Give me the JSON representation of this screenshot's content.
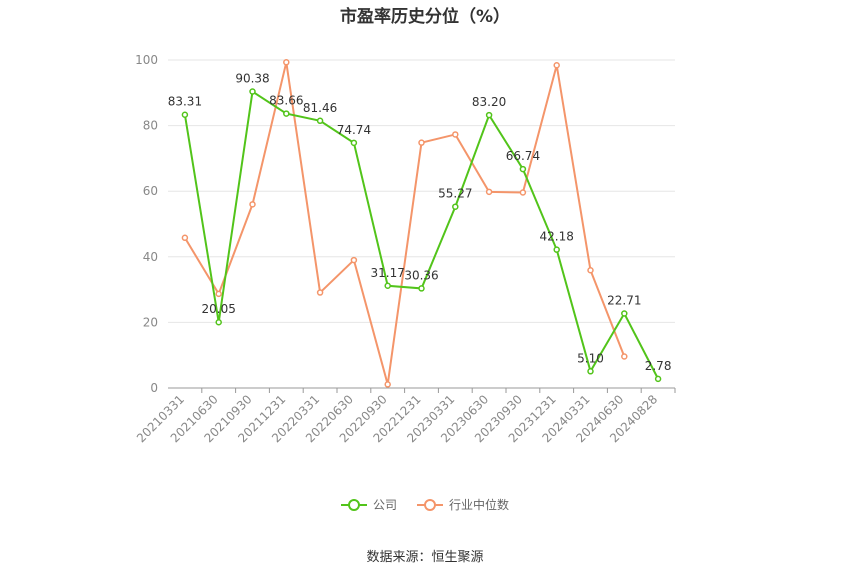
{
  "chart_data": {
    "type": "line",
    "title": "市盈率历史分位（%）",
    "categories": [
      "20210331",
      "20210630",
      "20210930",
      "20211231",
      "20220331",
      "20220630",
      "20220930",
      "20221231",
      "20230331",
      "20230630",
      "20230930",
      "20231231",
      "20240331",
      "20240630",
      "20240828"
    ],
    "ylim": [
      0,
      100
    ],
    "yticks": [
      0,
      20,
      40,
      60,
      80,
      100
    ],
    "grid": true,
    "legend_position": "bottom",
    "series": [
      {
        "name": "公司",
        "color": "#52c41a",
        "labels": true,
        "values": [
          83.31,
          20.05,
          90.38,
          83.66,
          81.46,
          74.74,
          31.17,
          30.36,
          55.27,
          83.2,
          66.74,
          42.18,
          5.1,
          22.71,
          2.78
        ]
      },
      {
        "name": "行业中位数",
        "color": "#f4956a",
        "labels": false,
        "values": [
          45.8,
          28.7,
          56.0,
          99.3,
          29.1,
          39.0,
          1.1,
          74.8,
          77.3,
          59.8,
          59.6,
          98.4,
          35.9,
          9.6,
          null
        ]
      }
    ]
  },
  "source_text": "数据来源：恒生聚源"
}
